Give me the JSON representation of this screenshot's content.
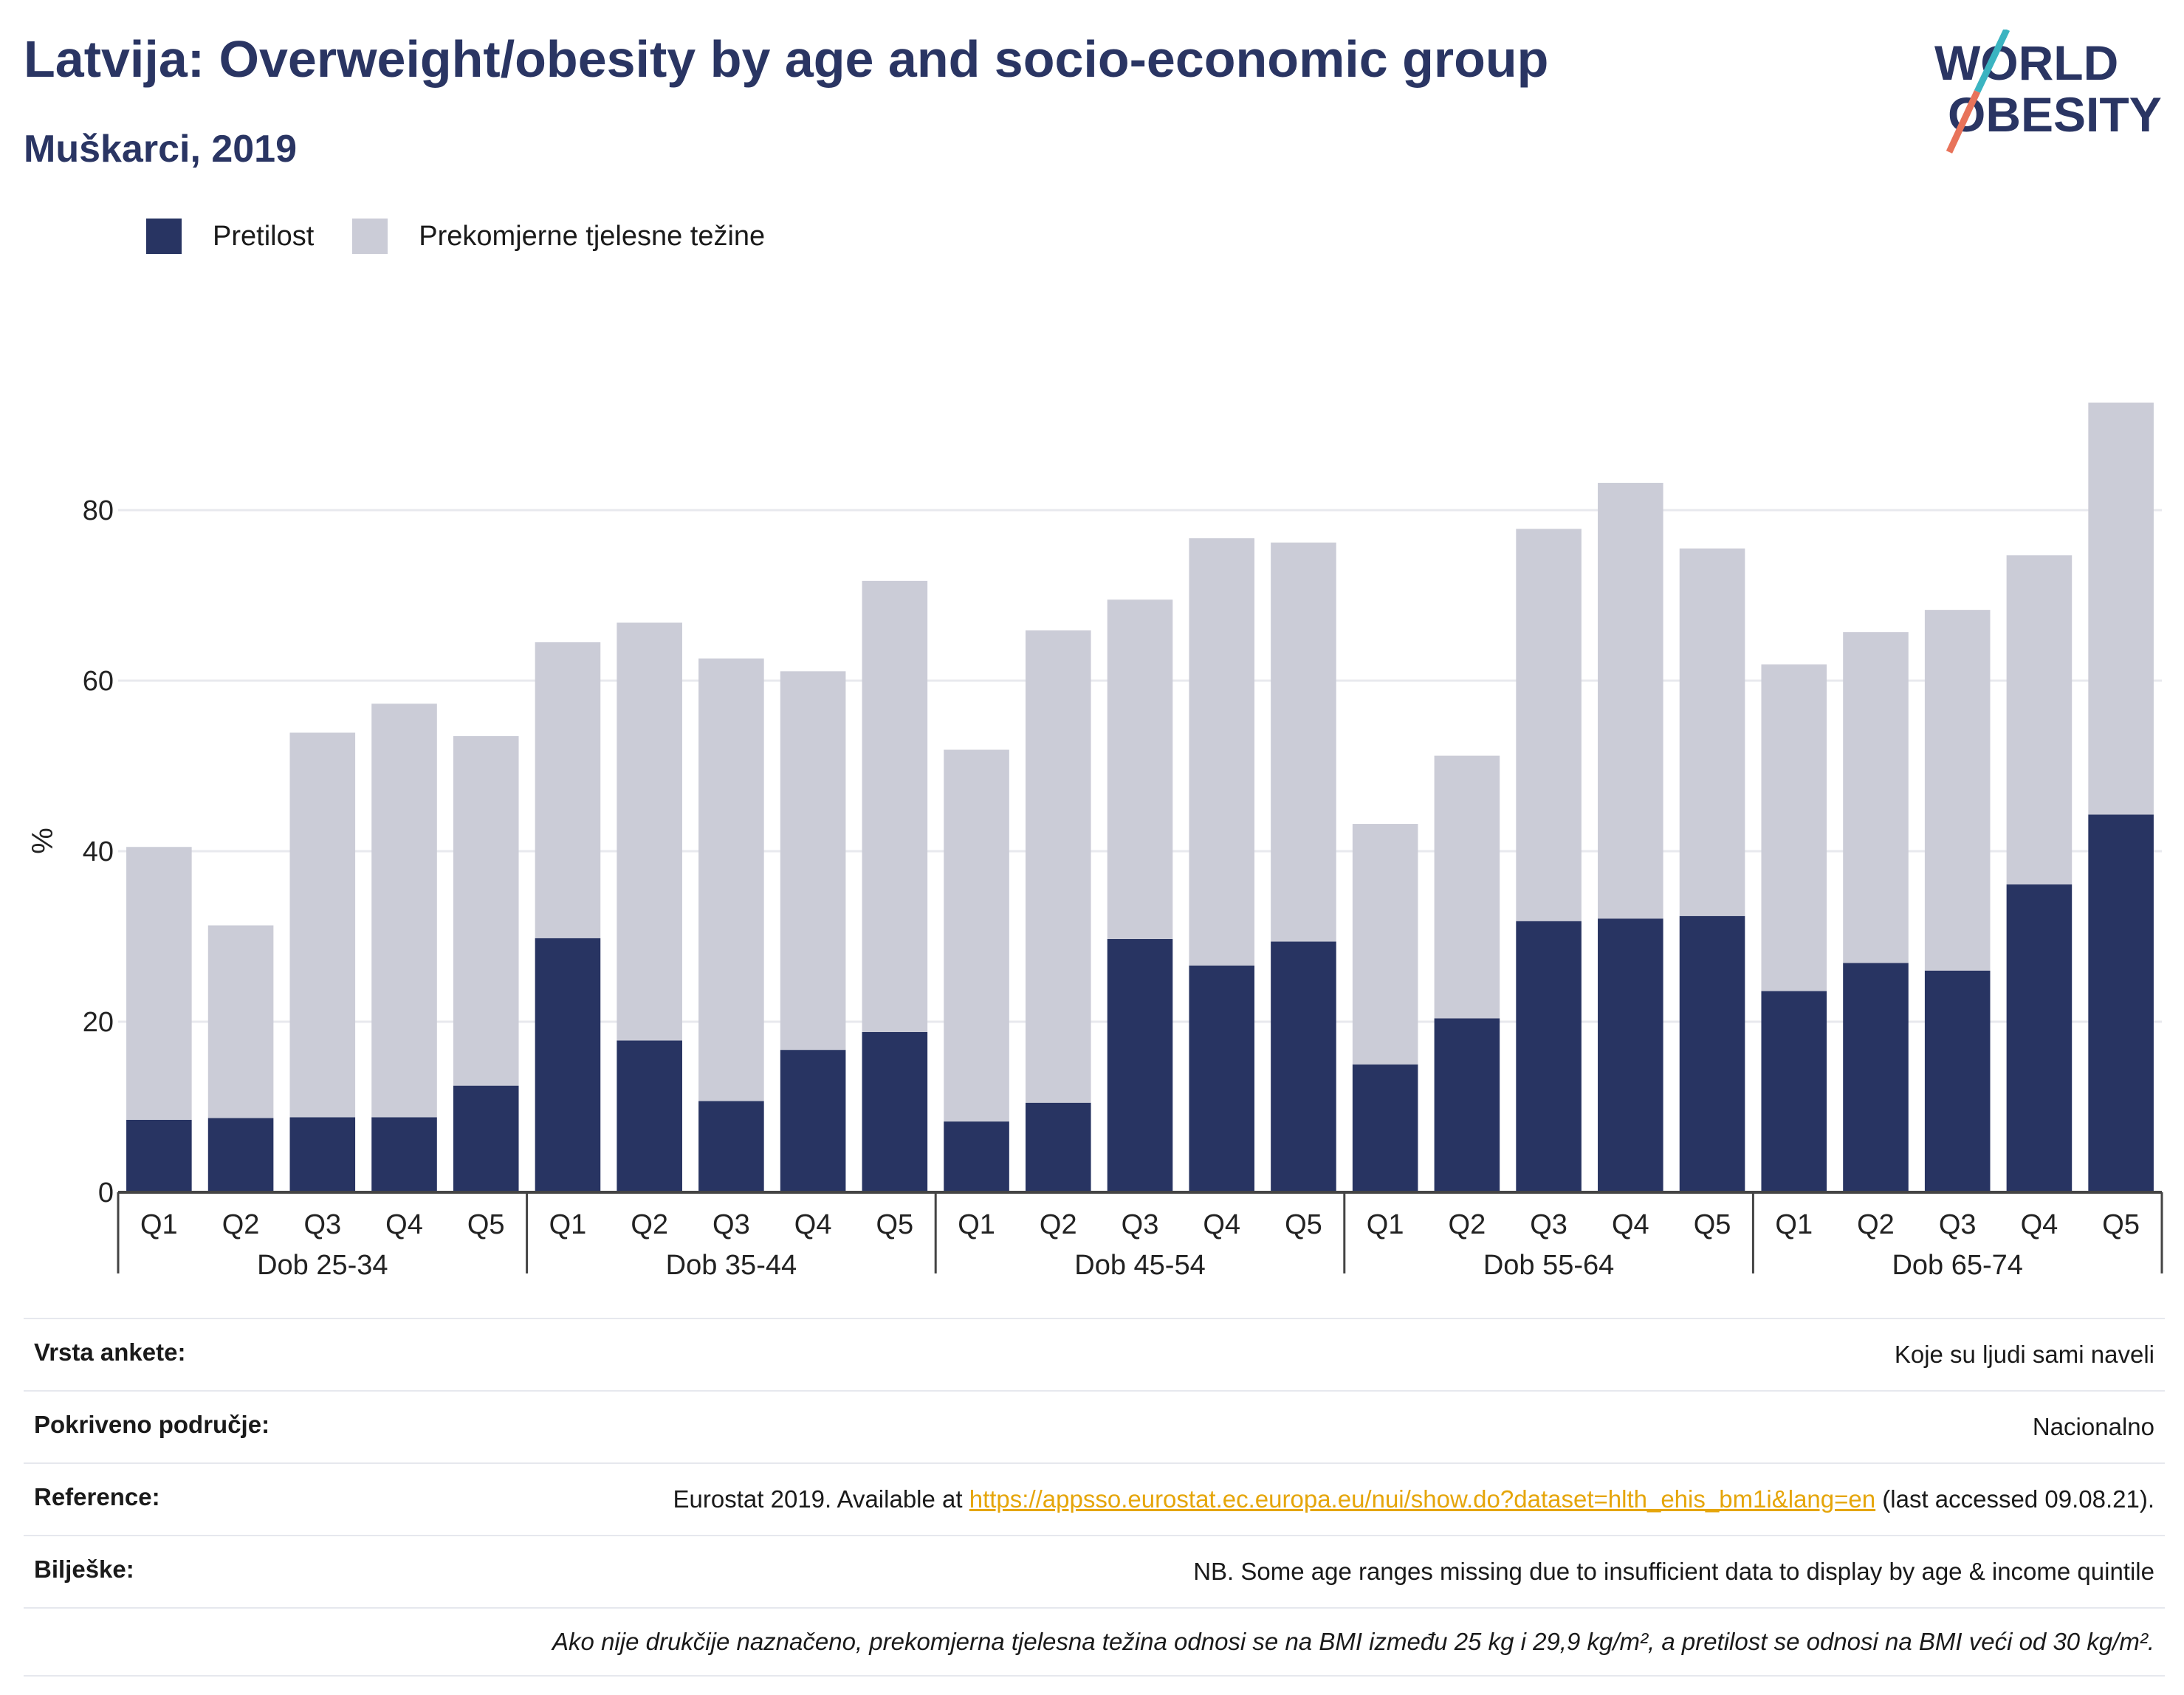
{
  "header": {
    "title": "Latvija: Overweight/obesity by age and socio-economic group",
    "subtitle": "Muškarci, 2019"
  },
  "logo": {
    "line1": "WORLD",
    "line2": "OBESITY",
    "accent_teal": "#3bb4c1",
    "accent_coral": "#e8735a",
    "text_color": "#2a3563"
  },
  "colors": {
    "obesity": "#283462",
    "overweight": "#cbccd7",
    "grid": "#e8e9ee",
    "axis": "#444444"
  },
  "chart_data": {
    "type": "bar",
    "stacked": true,
    "ylabel": "%",
    "ylim": [
      0,
      95
    ],
    "yticks": [
      0,
      20,
      40,
      60,
      80
    ],
    "grid": true,
    "legend_position": "top-left",
    "groups": [
      "Dob 25-34",
      "Dob 35-44",
      "Dob 45-54",
      "Dob 55-64",
      "Dob 65-74"
    ],
    "categories": [
      "Q1",
      "Q2",
      "Q3",
      "Q4",
      "Q5"
    ],
    "series": [
      {
        "name": "Pretilost",
        "color": "#283462",
        "values": [
          [
            8.5,
            8.7,
            8.8,
            8.8,
            12.5
          ],
          [
            29.8,
            17.8,
            10.7,
            16.7,
            18.8
          ],
          [
            8.3,
            10.5,
            29.7,
            26.6,
            29.4
          ],
          [
            15.0,
            20.4,
            31.8,
            32.1,
            32.4
          ],
          [
            23.6,
            26.9,
            26.0,
            36.1,
            44.3
          ]
        ]
      },
      {
        "name": "Prekomjerne tjelesne težine",
        "color": "#cbccd7",
        "values": [
          [
            32.0,
            22.6,
            45.1,
            48.5,
            41.0
          ],
          [
            34.7,
            49.0,
            51.9,
            44.4,
            52.9
          ],
          [
            43.6,
            55.4,
            39.8,
            50.1,
            46.8
          ],
          [
            28.2,
            30.8,
            46.0,
            51.1,
            43.1
          ],
          [
            38.3,
            38.8,
            42.3,
            38.6,
            48.3
          ]
        ]
      }
    ]
  },
  "footer": {
    "survey_type": {
      "label": "Vrsta ankete:",
      "value": "Koje su ljudi sami naveli"
    },
    "coverage": {
      "label": "Pokriveno područje:",
      "value": "Nacionalno"
    },
    "reference": {
      "label": "Reference:",
      "prefix": "Eurostat 2019. Available at ",
      "link": "https://appsso.eurostat.ec.europa.eu/nui/show.do?dataset=hlth_ehis_bm1i&lang=en",
      "suffix": " (last accessed 09.08.21)."
    },
    "notes": {
      "label": "Bilješke:",
      "value": "NB. Some age ranges missing due to insufficient data to display by age & income quintile"
    },
    "definition": "Ako nije drukčije naznačeno, prekomjerna tjelesna težina odnosi se na BMI između 25 kg i 29,9 kg/m², a pretilost se odnosi na BMI veći od 30 kg/m²."
  }
}
